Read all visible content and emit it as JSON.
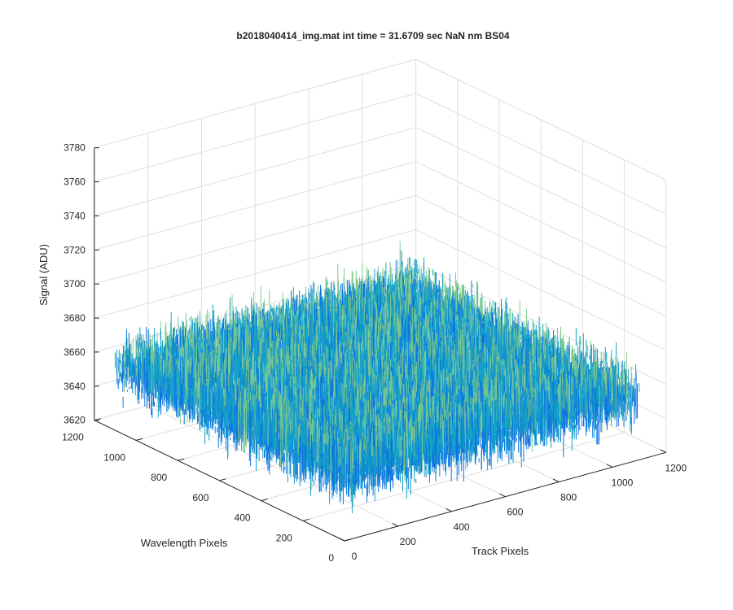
{
  "chart_data": {
    "type": "surface",
    "title": "b2018040414_img.mat int time = 31.6709 sec  NaN nm BS04",
    "xlabel": "Track Pixels",
    "ylabel": "Wavelength Pixels",
    "zlabel": "Signal (ADU)",
    "xlim": [
      0,
      1200
    ],
    "ylim": [
      0,
      1200
    ],
    "zlim": [
      3620,
      3780
    ],
    "x_ticks": [
      0,
      200,
      400,
      600,
      800,
      1000,
      1200
    ],
    "y_ticks": [
      0,
      200,
      400,
      600,
      800,
      1000,
      1200
    ],
    "z_ticks": [
      3620,
      3640,
      3660,
      3680,
      3700,
      3720,
      3740,
      3760,
      3780
    ],
    "grid": true,
    "colormap": "parula",
    "surface_extent": {
      "x": [
        0,
        1100
      ],
      "y": [
        0,
        1100
      ]
    },
    "signal_mean": 3658,
    "signal_range": [
      3615,
      3740
    ],
    "colors": {
      "low": "#0c74e0",
      "mid": "#16a2c8",
      "high": "#7ec890",
      "grid": "#dfdfdf",
      "axis": "#262626"
    }
  }
}
